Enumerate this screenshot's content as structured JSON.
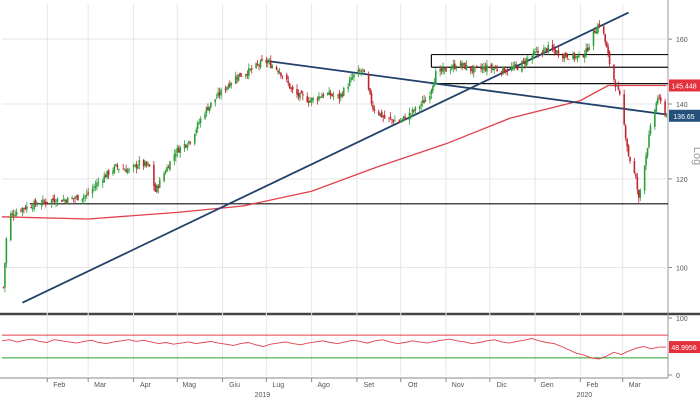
{
  "chart_data": [
    {
      "type": "candlestick",
      "title": "",
      "ylabel": "Log",
      "yscale": "log",
      "ylim": [
        92,
        172
      ],
      "y_ticks": [
        100,
        120,
        140,
        160
      ],
      "grid": true,
      "price_labels": {
        "last_price": "136.65",
        "sma_value": "145.448"
      },
      "colors": {
        "up_candle": "#2e9e3a",
        "down_candle": "#c0252f",
        "trendline": "#21406b",
        "moving_average": "#e0404a",
        "level_line": "#111111",
        "badge_red": "#e3303c",
        "badge_blue": "#25507e"
      },
      "close_series": [
        {
          "d": "2019-01-02",
          "c": 96
        },
        {
          "d": "2019-01-05",
          "c": 111
        },
        {
          "d": "2019-01-15",
          "c": 113
        },
        {
          "d": "2019-01-25",
          "c": 114
        },
        {
          "d": "2019-02-05",
          "c": 115
        },
        {
          "d": "2019-02-15",
          "c": 115
        },
        {
          "d": "2019-02-28",
          "c": 116
        },
        {
          "d": "2019-03-10",
          "c": 120
        },
        {
          "d": "2019-03-20",
          "c": 123
        },
        {
          "d": "2019-03-30",
          "c": 122
        },
        {
          "d": "2019-04-05",
          "c": 124
        },
        {
          "d": "2019-04-12",
          "c": 123
        },
        {
          "d": "2019-04-16",
          "c": 117
        },
        {
          "d": "2019-04-20",
          "c": 120
        },
        {
          "d": "2019-04-30",
          "c": 127
        },
        {
          "d": "2019-05-10",
          "c": 130
        },
        {
          "d": "2019-05-20",
          "c": 138
        },
        {
          "d": "2019-05-30",
          "c": 143
        },
        {
          "d": "2019-06-10",
          "c": 148
        },
        {
          "d": "2019-06-20",
          "c": 150
        },
        {
          "d": "2019-06-30",
          "c": 153
        },
        {
          "d": "2019-07-10",
          "c": 150
        },
        {
          "d": "2019-07-20",
          "c": 143
        },
        {
          "d": "2019-07-31",
          "c": 141
        },
        {
          "d": "2019-08-10",
          "c": 143
        },
        {
          "d": "2019-08-20",
          "c": 142
        },
        {
          "d": "2019-08-31",
          "c": 149
        },
        {
          "d": "2019-09-05",
          "c": 150
        },
        {
          "d": "2019-09-12",
          "c": 139
        },
        {
          "d": "2019-09-20",
          "c": 136
        },
        {
          "d": "2019-09-30",
          "c": 135
        },
        {
          "d": "2019-10-10",
          "c": 138
        },
        {
          "d": "2019-10-20",
          "c": 142
        },
        {
          "d": "2019-10-25",
          "c": 149
        },
        {
          "d": "2019-10-31",
          "c": 150
        },
        {
          "d": "2019-11-10",
          "c": 152
        },
        {
          "d": "2019-11-20",
          "c": 150
        },
        {
          "d": "2019-11-30",
          "c": 151
        },
        {
          "d": "2019-12-10",
          "c": 150
        },
        {
          "d": "2019-12-20",
          "c": 151
        },
        {
          "d": "2019-12-31",
          "c": 155
        },
        {
          "d": "2020-01-10",
          "c": 157
        },
        {
          "d": "2020-01-20",
          "c": 155
        },
        {
          "d": "2020-01-31",
          "c": 154
        },
        {
          "d": "2020-02-05",
          "c": 156
        },
        {
          "d": "2020-02-10",
          "c": 162
        },
        {
          "d": "2020-02-15",
          "c": 166
        },
        {
          "d": "2020-02-22",
          "c": 150
        },
        {
          "d": "2020-02-28",
          "c": 142
        },
        {
          "d": "2020-03-05",
          "c": 126
        },
        {
          "d": "2020-03-10",
          "c": 120
        },
        {
          "d": "2020-03-12",
          "c": 115
        },
        {
          "d": "2020-03-16",
          "c": 124
        },
        {
          "d": "2020-03-20",
          "c": 133
        },
        {
          "d": "2020-03-25",
          "c": 142
        },
        {
          "d": "2020-03-31",
          "c": 136.65
        }
      ],
      "horizontal_levels": [
        114,
        146,
        151,
        155
      ],
      "moving_average": [
        {
          "d": "2019-01-01",
          "v": 111
        },
        {
          "d": "2019-03-01",
          "v": 110.5
        },
        {
          "d": "2019-05-01",
          "v": 112
        },
        {
          "d": "2019-06-15",
          "v": 113.5
        },
        {
          "d": "2019-08-01",
          "v": 117
        },
        {
          "d": "2019-09-15",
          "v": 123
        },
        {
          "d": "2019-11-01",
          "v": 129
        },
        {
          "d": "2019-12-15",
          "v": 136
        },
        {
          "d": "2020-02-01",
          "v": 141
        },
        {
          "d": "2020-02-20",
          "v": 145.448
        },
        {
          "d": "2020-03-31",
          "v": 145.448
        }
      ],
      "trendlines": [
        {
          "from": {
            "d": "2019-01-15",
            "v": 93
          },
          "to": {
            "d": "2020-03-05",
            "v": 169
          }
        },
        {
          "from": {
            "d": "2019-07-01",
            "v": 153
          },
          "to": {
            "d": "2020-03-31",
            "v": 137
          }
        }
      ]
    },
    {
      "type": "line",
      "title": "",
      "ylim": [
        0,
        100
      ],
      "y_ticks": [
        0,
        100
      ],
      "last_value_label": "48.9956",
      "colors": {
        "oscillator": "#e0404a",
        "upper_band": "#e0404a",
        "lower_band": "#2aa02a",
        "badge": "#e3303c"
      },
      "bands": [
        70,
        30
      ],
      "series_values": [
        60,
        62,
        58,
        61,
        63,
        59,
        57,
        62,
        60,
        58,
        56,
        59,
        61,
        57,
        55,
        58,
        60,
        62,
        59,
        61,
        58,
        55,
        57,
        54,
        56,
        58,
        55,
        57,
        59,
        56,
        54,
        52,
        55,
        57,
        53,
        50,
        54,
        56,
        58,
        55,
        53,
        56,
        58,
        60,
        57,
        55,
        58,
        61,
        59,
        56,
        60,
        62,
        58,
        55,
        57,
        60,
        58,
        56,
        59,
        61,
        63,
        60,
        58,
        55,
        57,
        60,
        62,
        58,
        56,
        59,
        61,
        64,
        60,
        57,
        55,
        50,
        44,
        38,
        35,
        30,
        28,
        33,
        40,
        36,
        42,
        47,
        50,
        46,
        49,
        48.9956
      ]
    }
  ],
  "x_axis": {
    "months": [
      "Feb",
      "Mar",
      "Apr",
      "Mag",
      "Giu",
      "Lug",
      "Ago",
      "Set",
      "Ott",
      "Nov",
      "Dic",
      "Gen",
      "Feb",
      "Mar"
    ],
    "years": [
      "2019",
      "2020"
    ]
  }
}
